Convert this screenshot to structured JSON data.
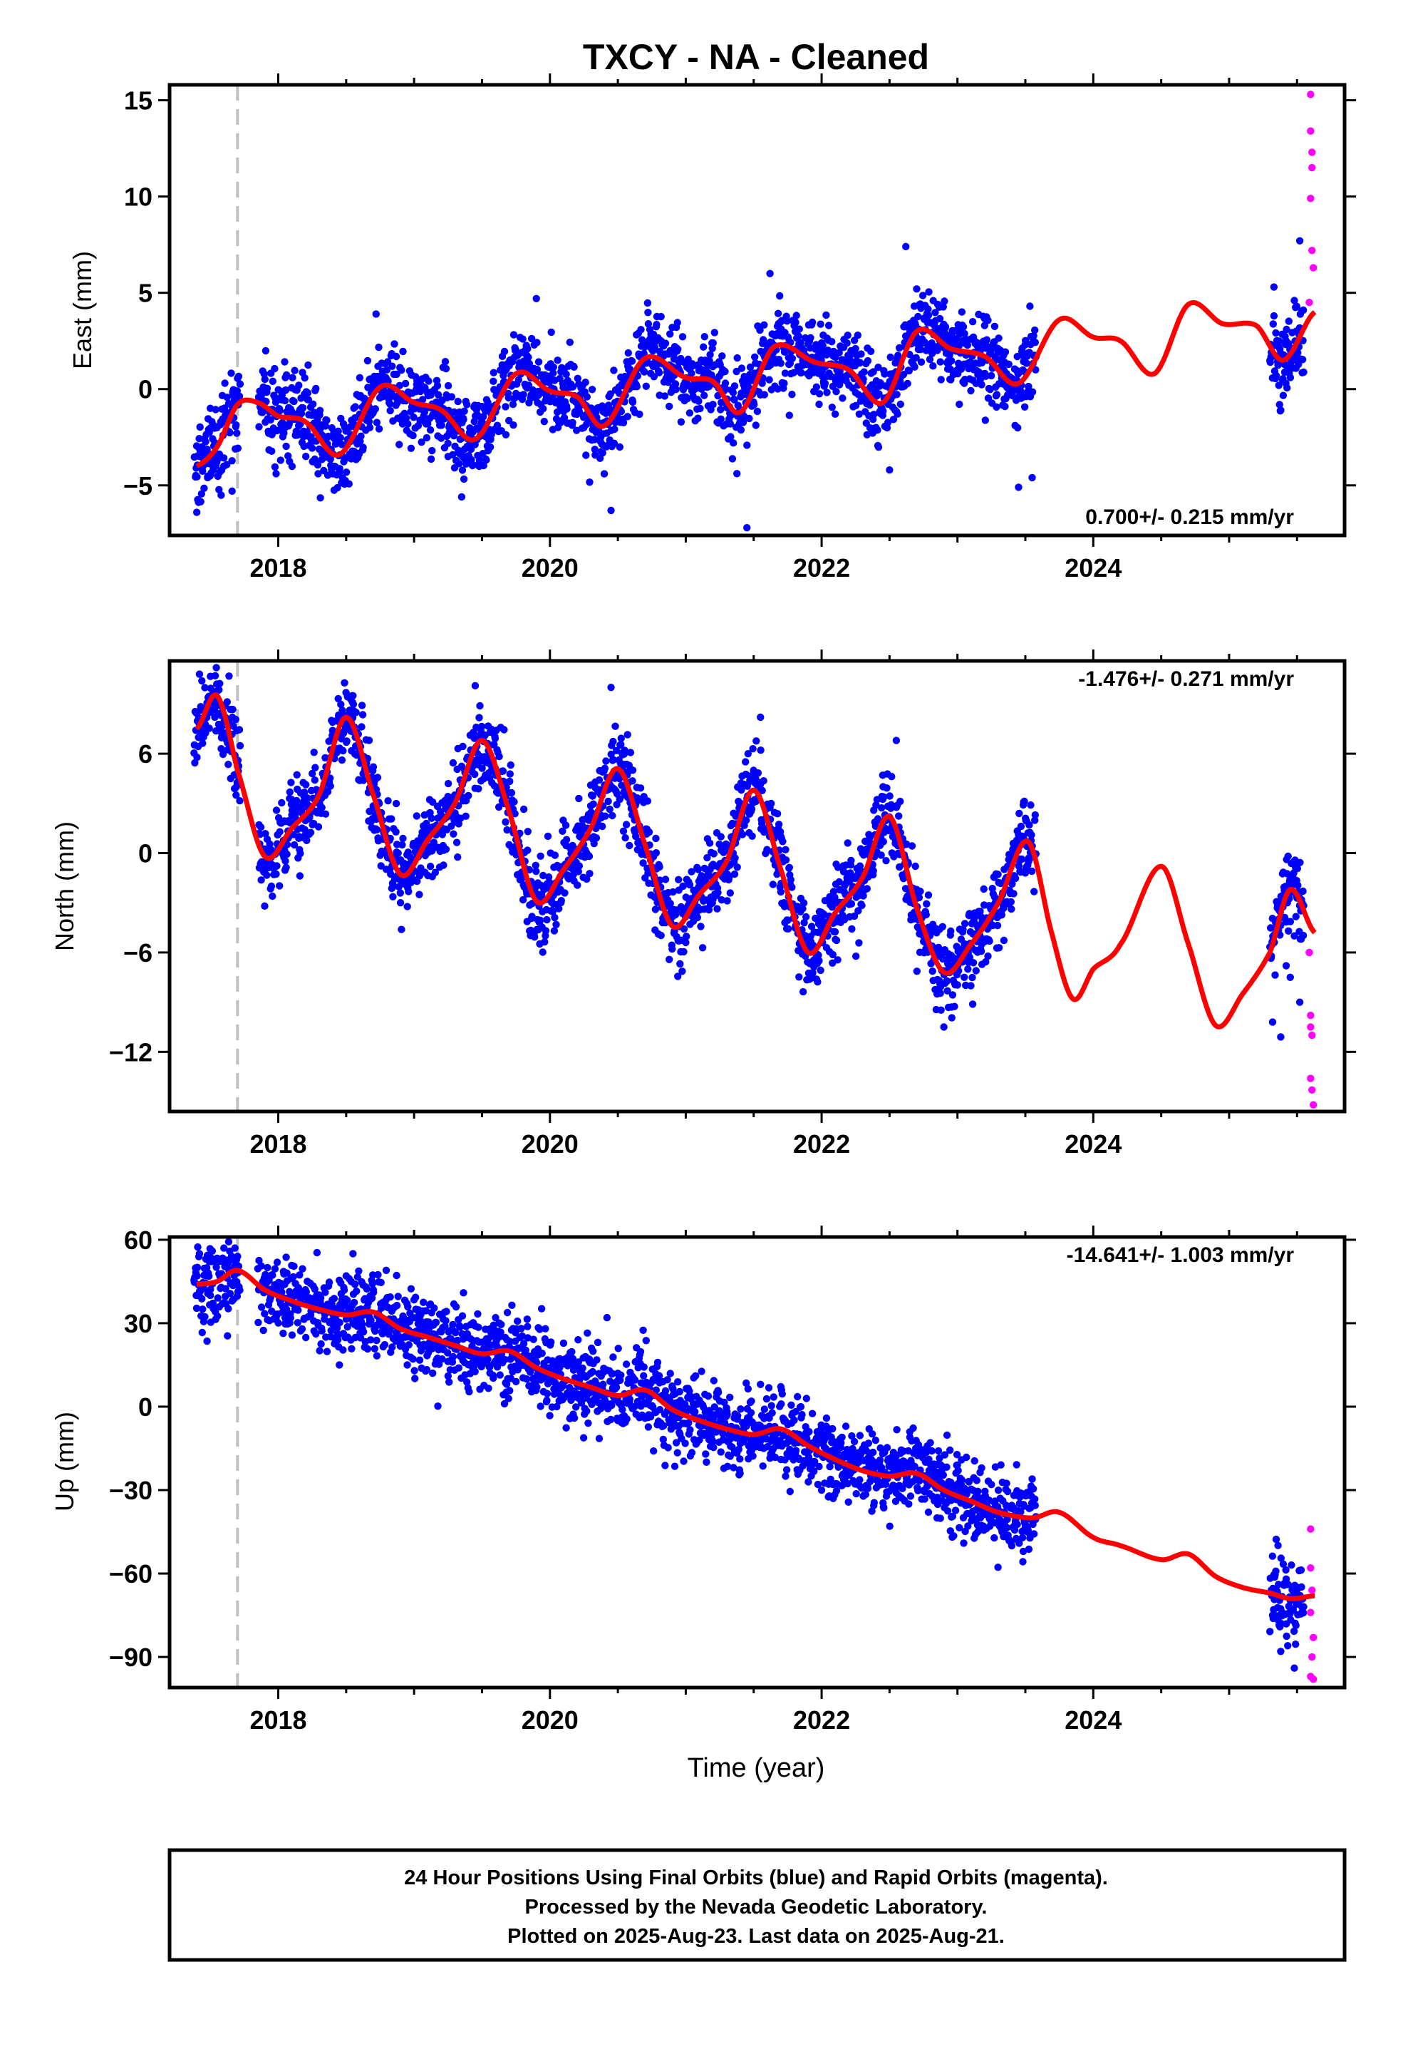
{
  "title": "TXCY  - NA - Cleaned",
  "x_axis_label": "Time (year)",
  "footer": {
    "line1": "24 Hour Positions Using Final Orbits (blue) and Rapid Orbits (magenta).",
    "line2": "Processed by the Nevada Geodetic Laboratory.",
    "line3": "Plotted on 2025-Aug-23. Last data on 2025-Aug-21."
  },
  "colors": {
    "final_orbits": "#0000ff",
    "rapid_orbits": "#ff00ff",
    "model_fit": "#ff0000",
    "event_line": "#c0c0c0",
    "frame": "#000000"
  },
  "chart_data": [
    {
      "type": "scatter",
      "panel": "east",
      "ylabel": "East (mm)",
      "rate_label": "0.700+/- 0.215 mm/yr",
      "rate_mm_per_yr": 0.7,
      "rate_sigma": 0.215,
      "xlim": [
        2017.2,
        2025.85
      ],
      "ylim": [
        -7.6,
        15.8
      ],
      "xticks": [
        2018,
        2020,
        2022,
        2024
      ],
      "xtick_labels": [
        "2018",
        "2020",
        "2022",
        "2024"
      ],
      "yticks": [
        -5,
        0,
        5,
        10,
        15
      ],
      "ytick_labels": [
        "−5",
        "0",
        "5",
        "10",
        "15"
      ],
      "event_lines_x": [
        2017.7
      ],
      "final_orbit_data_ranges": [
        [
          2017.38,
          2017.72
        ],
        [
          2017.85,
          2023.58
        ],
        [
          2025.3,
          2025.55
        ]
      ],
      "rapid_orbit_data_range": [
        2025.55,
        2025.64
      ],
      "rapid_orbit_points": [
        [
          2025.6,
          15.3
        ],
        [
          2025.6,
          13.4
        ],
        [
          2025.61,
          12.3
        ],
        [
          2025.61,
          11.5
        ],
        [
          2025.6,
          9.9
        ],
        [
          2025.61,
          7.2
        ],
        [
          2025.62,
          6.3
        ],
        [
          2025.59,
          4.5
        ]
      ],
      "model_fit": {
        "x": [
          2017.4,
          2017.55,
          2017.7,
          2017.85,
          2018.0,
          2018.2,
          2018.45,
          2018.75,
          2019.0,
          2019.2,
          2019.45,
          2019.75,
          2020.0,
          2020.2,
          2020.4,
          2020.7,
          2021.0,
          2021.2,
          2021.4,
          2021.65,
          2021.95,
          2022.2,
          2022.45,
          2022.7,
          2022.95,
          2023.2,
          2023.45,
          2023.75,
          2024.0,
          2024.2,
          2024.45,
          2024.7,
          2024.95,
          2025.2,
          2025.4,
          2025.63
        ],
        "y": [
          -4.0,
          -3.0,
          -0.8,
          -0.7,
          -1.4,
          -1.7,
          -3.4,
          0.1,
          -0.7,
          -1.1,
          -2.6,
          0.8,
          -0.1,
          -0.4,
          -1.9,
          1.6,
          0.6,
          0.4,
          -1.2,
          2.2,
          1.4,
          1.0,
          -0.7,
          3.0,
          2.1,
          1.7,
          0.3,
          3.6,
          2.7,
          2.5,
          0.8,
          4.4,
          3.4,
          3.3,
          1.5,
          4.0
        ]
      },
      "final_orbit_points": [
        [
          2017.42,
          -3.1
        ],
        [
          2017.48,
          -4.6
        ],
        [
          2017.55,
          -2.0
        ],
        [
          2017.6,
          -4.0
        ],
        [
          2017.66,
          -5.3
        ],
        [
          2017.5,
          -1.0
        ],
        [
          2017.4,
          -6.4
        ],
        [
          2017.93,
          -2.3
        ],
        [
          2018.05,
          -0.6
        ],
        [
          2018.15,
          -1.9
        ],
        [
          2018.3,
          -2.6
        ],
        [
          2018.45,
          -4.3
        ],
        [
          2018.6,
          -1.3
        ],
        [
          2018.72,
          3.9
        ],
        [
          2018.8,
          1.0
        ],
        [
          2018.95,
          -0.4
        ],
        [
          2019.1,
          -1.8
        ],
        [
          2019.25,
          -3.5
        ],
        [
          2019.35,
          -5.6
        ],
        [
          2019.5,
          -0.9
        ],
        [
          2019.65,
          1.7
        ],
        [
          2019.8,
          2.6
        ],
        [
          2019.9,
          4.7
        ],
        [
          2020.0,
          0.5
        ],
        [
          2020.1,
          -0.8
        ],
        [
          2020.25,
          -2.0
        ],
        [
          2020.4,
          -4.4
        ],
        [
          2020.45,
          -6.3
        ],
        [
          2020.6,
          0.4
        ],
        [
          2020.75,
          2.3
        ],
        [
          2020.9,
          3.2
        ],
        [
          2021.05,
          0.1
        ],
        [
          2021.2,
          -0.8
        ],
        [
          2021.35,
          -2.8
        ],
        [
          2021.45,
          -7.2
        ],
        [
          2021.55,
          -0.3
        ],
        [
          2021.62,
          6.0
        ],
        [
          2021.7,
          3.5
        ],
        [
          2021.85,
          1.2
        ],
        [
          2022.0,
          2.4
        ],
        [
          2022.1,
          -1.3
        ],
        [
          2022.25,
          2.1
        ],
        [
          2022.4,
          -2.0
        ],
        [
          2022.5,
          -4.2
        ],
        [
          2022.62,
          7.4
        ],
        [
          2022.7,
          5.2
        ],
        [
          2022.82,
          1.2
        ],
        [
          2022.95,
          2.8
        ],
        [
          2023.05,
          0.3
        ],
        [
          2023.2,
          3.3
        ],
        [
          2023.35,
          -0.9
        ],
        [
          2023.45,
          -5.1
        ],
        [
          2023.55,
          -4.6
        ],
        [
          2023.3,
          2.1
        ],
        [
          2025.33,
          5.3
        ],
        [
          2025.38,
          -1.1
        ],
        [
          2025.42,
          2.5
        ],
        [
          2025.48,
          4.6
        ],
        [
          2025.52,
          7.7
        ],
        [
          2025.47,
          1.1
        ]
      ]
    },
    {
      "type": "scatter",
      "panel": "north",
      "ylabel": "North (mm)",
      "rate_label": "-1.476+/- 0.271 mm/yr",
      "rate_mm_per_yr": -1.476,
      "rate_sigma": 0.271,
      "xlim": [
        2017.2,
        2025.85
      ],
      "ylim": [
        -15.6,
        11.6
      ],
      "xticks": [
        2018,
        2020,
        2022,
        2024
      ],
      "xtick_labels": [
        "2018",
        "2020",
        "2022",
        "2024"
      ],
      "yticks": [
        -12,
        -6,
        0,
        6
      ],
      "ytick_labels": [
        "−12",
        "−6",
        "0",
        "6"
      ],
      "event_lines_x": [
        2017.7
      ],
      "final_orbit_data_ranges": [
        [
          2017.38,
          2017.72
        ],
        [
          2017.85,
          2023.58
        ],
        [
          2025.3,
          2025.55
        ]
      ],
      "rapid_orbit_data_range": [
        2025.55,
        2025.64
      ],
      "rapid_orbit_points": [
        [
          2025.59,
          -6.0
        ],
        [
          2025.6,
          -9.8
        ],
        [
          2025.61,
          -11.0
        ],
        [
          2025.6,
          -13.6
        ],
        [
          2025.61,
          -14.3
        ],
        [
          2025.62,
          -15.2
        ],
        [
          2025.6,
          -10.5
        ]
      ],
      "model_fit": {
        "x": [
          2017.4,
          2017.55,
          2017.7,
          2017.9,
          2018.1,
          2018.3,
          2018.5,
          2018.7,
          2018.9,
          2019.1,
          2019.3,
          2019.5,
          2019.7,
          2019.9,
          2020.1,
          2020.3,
          2020.5,
          2020.7,
          2020.9,
          2021.1,
          2021.3,
          2021.5,
          2021.7,
          2021.9,
          2022.1,
          2022.3,
          2022.5,
          2022.7,
          2022.9,
          2023.1,
          2023.3,
          2023.52,
          2023.7,
          2023.85,
          2024.0,
          2024.2,
          2024.5,
          2024.7,
          2024.9,
          2025.1,
          2025.3,
          2025.45,
          2025.63
        ],
        "y": [
          7.5,
          9.5,
          5.0,
          -0.2,
          1.5,
          3.5,
          8.2,
          3.5,
          -1.3,
          0.8,
          3.0,
          6.8,
          2.5,
          -2.9,
          -1.0,
          1.5,
          5.1,
          0.5,
          -4.4,
          -2.5,
          -0.5,
          3.8,
          -1.0,
          -6.0,
          -3.6,
          -1.5,
          2.2,
          -3.3,
          -7.2,
          -5.5,
          -3.0,
          0.7,
          -5.0,
          -8.8,
          -7.0,
          -5.5,
          -0.8,
          -5.5,
          -10.4,
          -8.5,
          -6.0,
          -2.2,
          -4.8
        ]
      },
      "final_orbit_points": [
        [
          2017.42,
          10.8
        ],
        [
          2017.5,
          8.5
        ],
        [
          2017.58,
          6.3
        ],
        [
          2017.65,
          4.5
        ],
        [
          2017.45,
          7.0
        ],
        [
          2017.95,
          -2.0
        ],
        [
          2017.9,
          -3.2
        ],
        [
          2018.1,
          2.3
        ],
        [
          2018.25,
          4.8
        ],
        [
          2018.4,
          7.4
        ],
        [
          2018.55,
          9.5
        ],
        [
          2018.7,
          5.2
        ],
        [
          2018.85,
          -2.0
        ],
        [
          2018.9,
          -3.0
        ],
        [
          2019.1,
          1.2
        ],
        [
          2019.3,
          3.5
        ],
        [
          2019.45,
          10.1
        ],
        [
          2019.55,
          6.5
        ],
        [
          2019.7,
          0.5
        ],
        [
          2019.85,
          -4.7
        ],
        [
          2020.05,
          -2.0
        ],
        [
          2020.2,
          1.5
        ],
        [
          2020.3,
          4.1
        ],
        [
          2020.45,
          10.0
        ],
        [
          2020.55,
          6.2
        ],
        [
          2020.7,
          -1.5
        ],
        [
          2020.85,
          -4.2
        ],
        [
          2021.0,
          -5.4
        ],
        [
          2021.2,
          -2.8
        ],
        [
          2021.4,
          1.8
        ],
        [
          2021.55,
          8.2
        ],
        [
          2021.7,
          1.0
        ],
        [
          2021.85,
          -5.8
        ],
        [
          2021.95,
          -6.6
        ],
        [
          2022.15,
          -3.0
        ],
        [
          2022.3,
          0.0
        ],
        [
          2022.45,
          4.7
        ],
        [
          2022.55,
          6.8
        ],
        [
          2022.7,
          -2.2
        ],
        [
          2022.85,
          -8.5
        ],
        [
          2022.9,
          -10.5
        ],
        [
          2023.05,
          -7.5
        ],
        [
          2023.2,
          -5.2
        ],
        [
          2023.3,
          -3.8
        ],
        [
          2023.45,
          1.1
        ],
        [
          2023.5,
          -1.2
        ],
        [
          2025.32,
          -10.2
        ],
        [
          2025.38,
          -11.1
        ],
        [
          2025.42,
          -6.8
        ],
        [
          2025.48,
          -5.0
        ],
        [
          2025.52,
          -9.0
        ],
        [
          2025.45,
          -7.5
        ]
      ]
    },
    {
      "type": "scatter",
      "panel": "up",
      "ylabel": "Up (mm)",
      "rate_label": "-14.641+/- 1.003 mm/yr",
      "rate_mm_per_yr": -14.641,
      "rate_sigma": 1.003,
      "xlim": [
        2017.2,
        2025.85
      ],
      "ylim": [
        -101,
        61
      ],
      "xticks": [
        2018,
        2020,
        2022,
        2024
      ],
      "xtick_labels": [
        "2018",
        "2020",
        "2022",
        "2024"
      ],
      "yticks": [
        -90,
        -60,
        -30,
        0,
        30,
        60
      ],
      "ytick_labels": [
        "−90",
        "−60",
        "−30",
        "0",
        "30",
        "60"
      ],
      "event_lines_x": [
        2017.7
      ],
      "final_orbit_data_ranges": [
        [
          2017.38,
          2017.72
        ],
        [
          2017.85,
          2023.58
        ],
        [
          2025.3,
          2025.55
        ]
      ],
      "rapid_orbit_data_range": [
        2025.55,
        2025.64
      ],
      "rapid_orbit_points": [
        [
          2025.6,
          -44.0
        ],
        [
          2025.6,
          -58.0
        ],
        [
          2025.61,
          -66.0
        ],
        [
          2025.6,
          -74.0
        ],
        [
          2025.62,
          -83.0
        ],
        [
          2025.61,
          -90.0
        ],
        [
          2025.6,
          -97.0
        ],
        [
          2025.62,
          -98.0
        ]
      ],
      "model_fit": {
        "x": [
          2017.4,
          2017.55,
          2017.7,
          2017.9,
          2018.1,
          2018.3,
          2018.5,
          2018.7,
          2018.9,
          2019.1,
          2019.3,
          2019.5,
          2019.7,
          2019.9,
          2020.1,
          2020.3,
          2020.5,
          2020.7,
          2020.9,
          2021.1,
          2021.3,
          2021.5,
          2021.7,
          2021.9,
          2022.1,
          2022.3,
          2022.5,
          2022.7,
          2022.9,
          2023.1,
          2023.3,
          2023.55,
          2023.75,
          2024.0,
          2024.2,
          2024.5,
          2024.7,
          2024.9,
          2025.1,
          2025.3,
          2025.45,
          2025.63
        ],
        "y": [
          44.0,
          45.0,
          49.0,
          42.0,
          38.0,
          35.0,
          33.0,
          34.0,
          28.0,
          25.0,
          22.0,
          19.0,
          20.0,
          14.0,
          10.0,
          7.0,
          4.0,
          6.0,
          -1.0,
          -5.0,
          -8.0,
          -10.0,
          -8.0,
          -14.0,
          -19.0,
          -23.0,
          -25.0,
          -24.0,
          -30.0,
          -34.0,
          -38.0,
          -40.0,
          -38.0,
          -47.0,
          -50.0,
          -55.0,
          -53.0,
          -61.0,
          -65.0,
          -67.0,
          -69.0,
          -68.0
        ]
      },
      "final_orbit_points": [
        [
          2017.42,
          55.0
        ],
        [
          2017.5,
          40.0
        ],
        [
          2017.6,
          57.0
        ],
        [
          2017.66,
          38.0
        ],
        [
          2017.92,
          50.0
        ],
        [
          2018.05,
          32.0
        ],
        [
          2018.2,
          42.0
        ],
        [
          2018.35,
          25.0
        ],
        [
          2018.45,
          15.0
        ],
        [
          2018.5,
          47.0
        ],
        [
          2018.55,
          55.0
        ],
        [
          2018.7,
          42.0
        ],
        [
          2018.85,
          31.0
        ],
        [
          2018.95,
          15.0
        ],
        [
          2019.1,
          28.0
        ],
        [
          2019.25,
          11.0
        ],
        [
          2019.45,
          29.0
        ],
        [
          2019.6,
          32.0
        ],
        [
          2019.75,
          9.0
        ],
        [
          2019.9,
          16.0
        ],
        [
          2020.05,
          0.0
        ],
        [
          2020.15,
          -4.0
        ],
        [
          2020.3,
          12.0
        ],
        [
          2020.42,
          32.0
        ],
        [
          2020.5,
          -5.0
        ],
        [
          2020.65,
          14.0
        ],
        [
          2020.78,
          -2.0
        ],
        [
          2020.9,
          7.0
        ],
        [
          2021.1,
          -12.0
        ],
        [
          2021.25,
          2.0
        ],
        [
          2021.4,
          -24.0
        ],
        [
          2021.55,
          8.0
        ],
        [
          2021.7,
          -19.0
        ],
        [
          2021.85,
          -4.0
        ],
        [
          2022.0,
          -30.0
        ],
        [
          2022.15,
          -11.0
        ],
        [
          2022.35,
          -8.0
        ],
        [
          2022.55,
          -31.0
        ],
        [
          2022.65,
          -11.0
        ],
        [
          2022.85,
          -40.0
        ],
        [
          2023.0,
          -21.0
        ],
        [
          2023.15,
          -45.0
        ],
        [
          2023.25,
          -28.0
        ],
        [
          2023.4,
          -50.0
        ],
        [
          2023.55,
          -26.0
        ],
        [
          2025.32,
          -75.0
        ],
        [
          2025.38,
          -88.0
        ],
        [
          2025.42,
          -62.0
        ],
        [
          2025.48,
          -94.0
        ],
        [
          2025.52,
          -68.0
        ]
      ]
    }
  ]
}
